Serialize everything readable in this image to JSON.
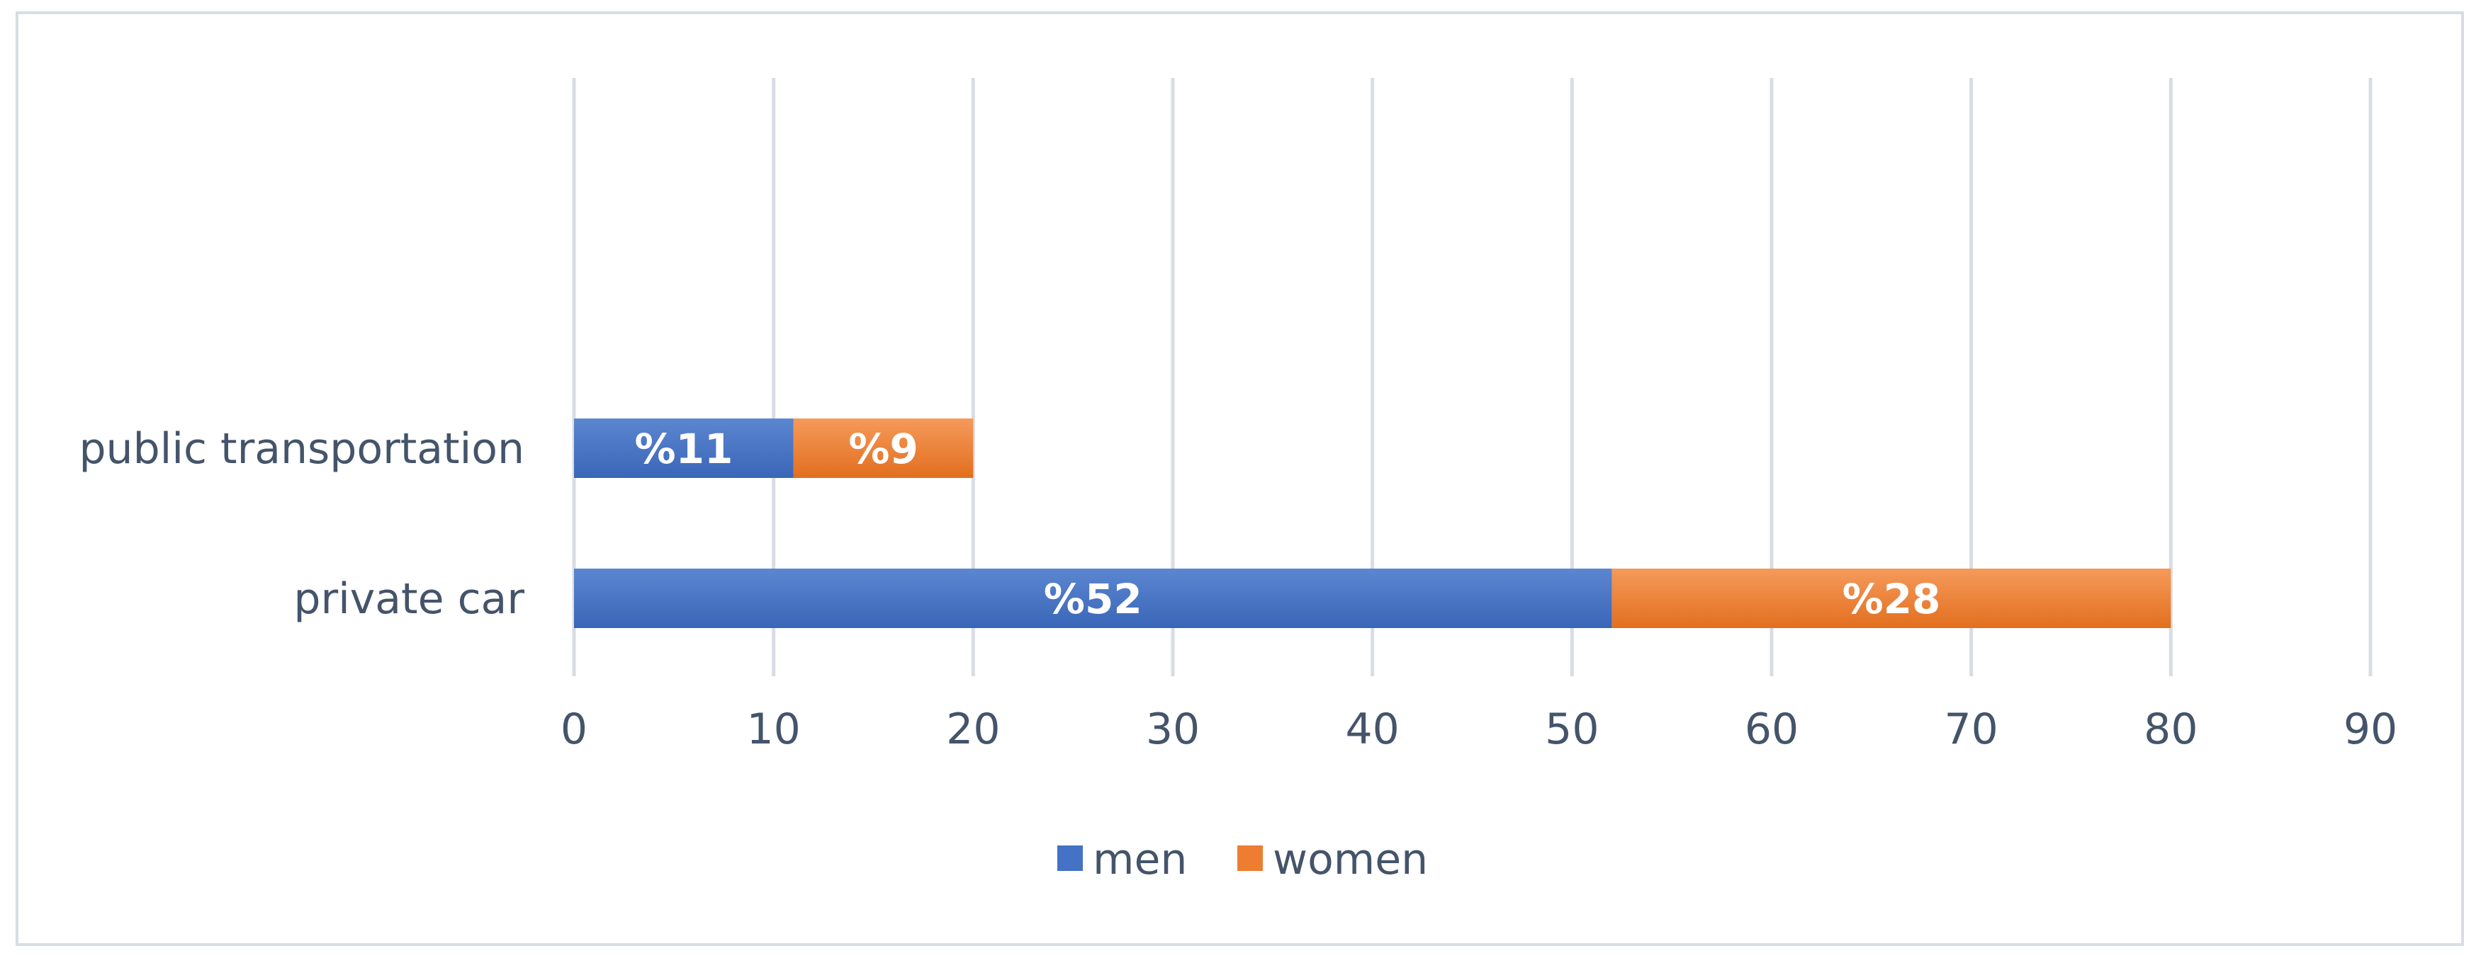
{
  "chart_data": {
    "type": "bar",
    "orientation": "horizontal",
    "stacked": true,
    "categories": [
      "public transportation",
      "private car"
    ],
    "series": [
      {
        "name": "men",
        "values": [
          11,
          52
        ],
        "labels": [
          "%11",
          "%52"
        ],
        "color": "#4472c4"
      },
      {
        "name": "women",
        "values": [
          9,
          28
        ],
        "labels": [
          "%9",
          "%28"
        ],
        "color": "#ed7d31"
      }
    ],
    "xlim": [
      0,
      90
    ],
    "xticks": [
      "0",
      "10",
      "20",
      "30",
      "40",
      "50",
      "60",
      "70",
      "80",
      "90"
    ],
    "grid": true,
    "legend": "bottom",
    "title": "",
    "xlabel": "",
    "ylabel": ""
  }
}
